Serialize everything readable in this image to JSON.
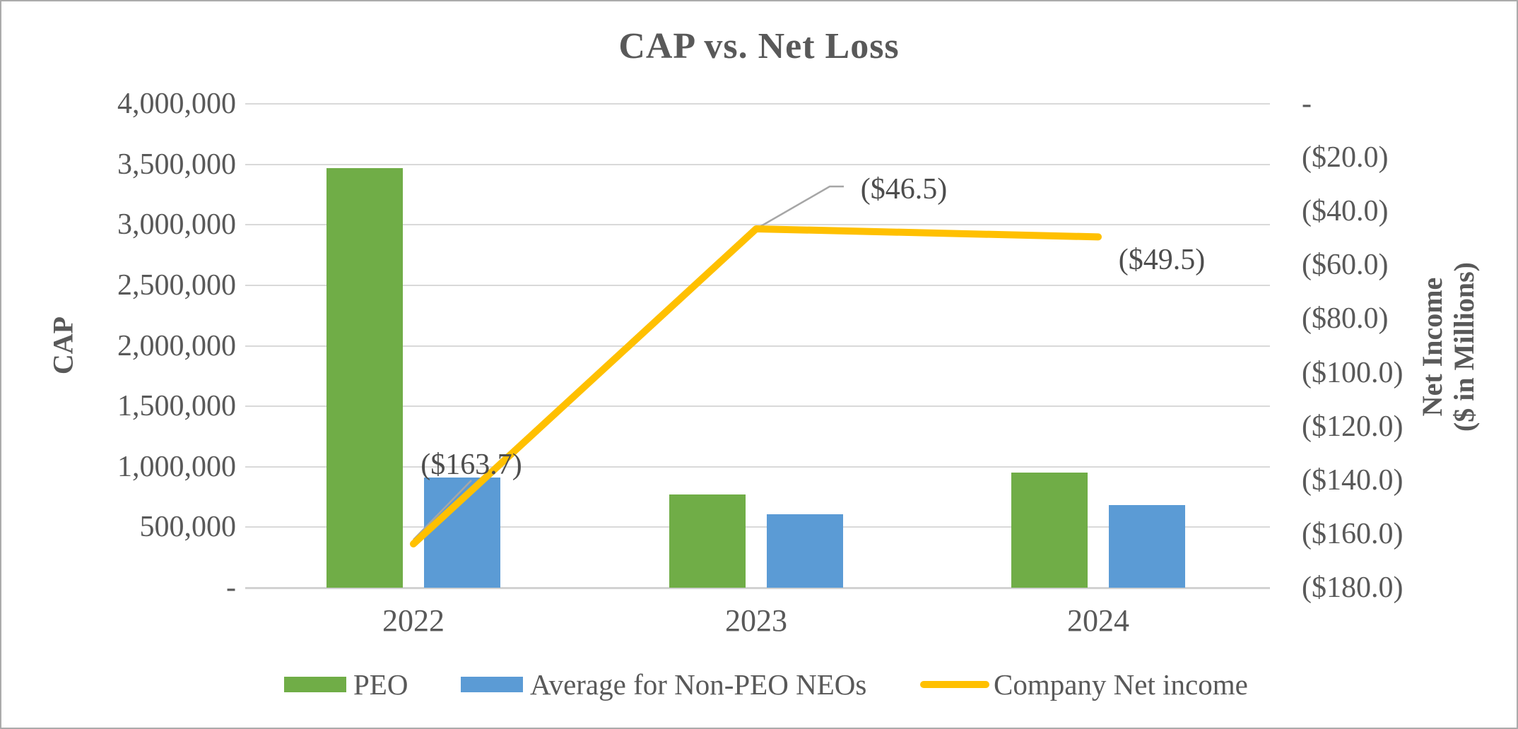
{
  "chart_data": {
    "type": "bar",
    "subtype": "bar+line combo, dual axis",
    "title": "CAP vs. Net Loss",
    "categories": [
      "2022",
      "2023",
      "2024"
    ],
    "series": [
      {
        "name": "PEO",
        "type": "bar",
        "axis": "left",
        "color": "#70AD47",
        "values": [
          3470000,
          770000,
          950000
        ]
      },
      {
        "name": "Average for Non-PEO NEOs",
        "type": "bar",
        "axis": "left",
        "color": "#5B9BD5",
        "values": [
          910000,
          605000,
          685000
        ]
      },
      {
        "name": "Company Net income",
        "type": "line",
        "axis": "right",
        "color": "#FFC000",
        "values": [
          -163.7,
          -46.5,
          -49.5
        ],
        "point_labels": [
          "($163.7)",
          "($46.5)",
          "($49.5)"
        ]
      }
    ],
    "left_axis": {
      "label": "CAP",
      "min": 0,
      "max": 4000000,
      "step": 500000,
      "ticks": [
        "4,000,000",
        "3,500,000",
        "3,000,000",
        "2,500,000",
        "2,000,000",
        "1,500,000",
        "1,000,000",
        "500,000",
        "-"
      ]
    },
    "right_axis": {
      "label_line1": "Net Income",
      "label_line2": "($ in Millions)",
      "min": -180,
      "max": 0,
      "step": -20,
      "ticks": [
        "-",
        "($20.0)",
        "($40.0)",
        "($60.0)",
        "($80.0)",
        "($100.0)",
        "($120.0)",
        "($140.0)",
        "($160.0)",
        "($180.0)"
      ]
    },
    "legend": {
      "position": "bottom",
      "entries": [
        {
          "label": "PEO",
          "swatch": "bar",
          "color": "#70AD47"
        },
        {
          "label": "Average for Non-PEO NEOs",
          "swatch": "bar",
          "color": "#5B9BD5"
        },
        {
          "label": "Company Net income",
          "swatch": "line",
          "color": "#FFC000"
        }
      ]
    },
    "grid": "horizontal gridlines on",
    "colors": {
      "text": "#595959",
      "gridline": "#D9D9D9",
      "leader_line": "#A6A6A6",
      "frame_border": "#ABABAB"
    }
  }
}
